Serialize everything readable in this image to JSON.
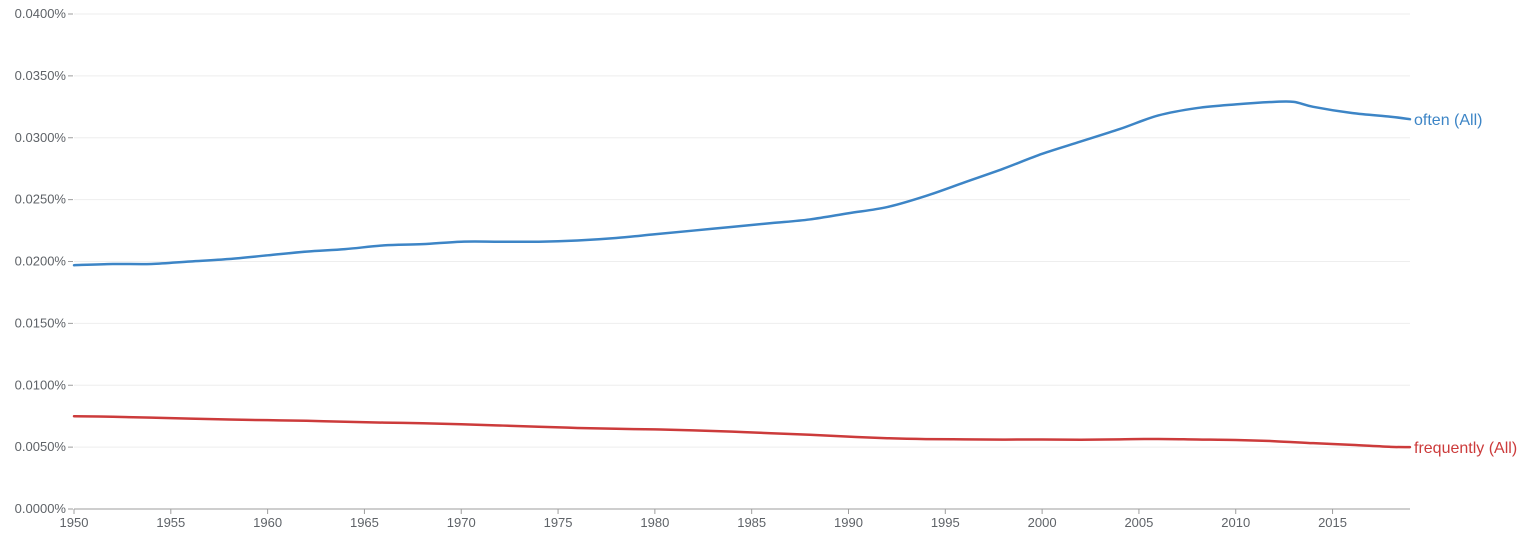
{
  "chart_data": {
    "type": "line",
    "title": "",
    "xlabel": "",
    "ylabel": "",
    "xlim": [
      1950,
      2019
    ],
    "ylim": [
      0,
      0.0004
    ],
    "grid": true,
    "x_ticks": [
      "1950",
      "1955",
      "1960",
      "1965",
      "1970",
      "1975",
      "1980",
      "1985",
      "1990",
      "1995",
      "2000",
      "2005",
      "2010",
      "2015"
    ],
    "y_ticks": [
      "0.0000%",
      "0.0050%",
      "0.0100%",
      "0.0150%",
      "0.0200%",
      "0.0250%",
      "0.0300%",
      "0.0350%",
      "0.0400%"
    ],
    "y_tick_values": [
      0,
      5e-05,
      0.0001,
      0.00015,
      0.0002,
      0.00025,
      0.0003,
      0.00035,
      0.0004
    ],
    "x_tick_values": [
      1950,
      1955,
      1960,
      1965,
      1970,
      1975,
      1980,
      1985,
      1990,
      1995,
      2000,
      2005,
      2010,
      2015
    ],
    "series": [
      {
        "name": "often (All)",
        "color": "#3d85c6",
        "x": [
          1950,
          1952,
          1954,
          1956,
          1958,
          1960,
          1962,
          1964,
          1966,
          1968,
          1970,
          1972,
          1974,
          1976,
          1978,
          1980,
          1982,
          1984,
          1986,
          1988,
          1990,
          1992,
          1994,
          1996,
          1998,
          2000,
          2002,
          2004,
          2006,
          2008,
          2010,
          2012,
          2013,
          2014,
          2016,
          2018,
          2019
        ],
        "y": [
          0.000197,
          0.000198,
          0.000198,
          0.0002,
          0.000202,
          0.000205,
          0.000208,
          0.00021,
          0.000213,
          0.000214,
          0.000216,
          0.000216,
          0.000216,
          0.000217,
          0.000219,
          0.000222,
          0.000225,
          0.000228,
          0.000231,
          0.000234,
          0.000239,
          0.000244,
          0.000253,
          0.000264,
          0.000275,
          0.000287,
          0.000297,
          0.000307,
          0.000318,
          0.000324,
          0.000327,
          0.000329,
          0.000329,
          0.000325,
          0.00032,
          0.000317,
          0.000315
        ]
      },
      {
        "name": "frequently (All)",
        "color": "#cc3b3b",
        "x": [
          1950,
          1952,
          1954,
          1956,
          1958,
          1960,
          1962,
          1964,
          1966,
          1968,
          1970,
          1972,
          1974,
          1976,
          1978,
          1980,
          1982,
          1984,
          1986,
          1988,
          1990,
          1992,
          1994,
          1996,
          1998,
          2000,
          2002,
          2004,
          2006,
          2008,
          2010,
          2012,
          2014,
          2016,
          2018,
          2019
        ],
        "y": [
          7.5e-05,
          7.45e-05,
          7.38e-05,
          7.3e-05,
          7.23e-05,
          7.18e-05,
          7.13e-05,
          7.05e-05,
          6.98e-05,
          6.93e-05,
          6.85e-05,
          6.75e-05,
          6.65e-05,
          6.55e-05,
          6.48e-05,
          6.43e-05,
          6.35e-05,
          6.25e-05,
          6.12e-05,
          6e-05,
          5.85e-05,
          5.72e-05,
          5.65e-05,
          5.63e-05,
          5.61e-05,
          5.62e-05,
          5.6e-05,
          5.63e-05,
          5.66e-05,
          5.62e-05,
          5.58e-05,
          5.48e-05,
          5.32e-05,
          5.18e-05,
          5.02e-05,
          5e-05
        ]
      }
    ]
  }
}
